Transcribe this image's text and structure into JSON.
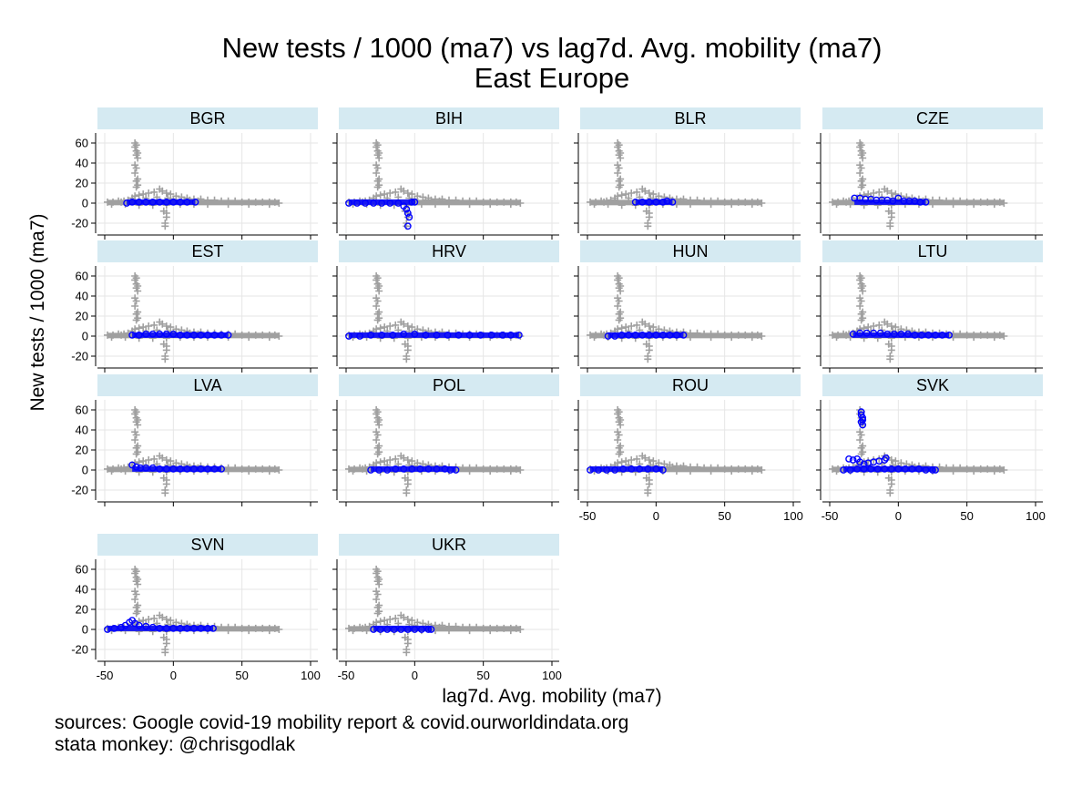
{
  "chart_data": {
    "type": "scatter",
    "title": "New tests / 1000 (ma7) vs lag7d. Avg. mobility (ma7)",
    "subtitle": "East Europe",
    "xlabel": "lag7d. Avg. mobility (ma7)",
    "ylabel": "New tests / 1000 (ma7)",
    "xlim": [
      -50,
      100
    ],
    "ylim": [
      -30,
      70
    ],
    "xticks": [
      -50,
      0,
      50,
      100
    ],
    "yticks": [
      -20,
      0,
      20,
      40,
      60
    ],
    "grid": true,
    "panel_strip_color": "#d5eaf2",
    "background_color": "#a0a0a0",
    "highlight_color": "#0000ff",
    "notes": [
      "sources: Google covid-19 mobility report & covid.ourworldindata.org",
      "stata monkey: @chrisgodlak"
    ],
    "background_points": [
      [
        -28,
        60
      ],
      [
        -28,
        56
      ],
      [
        -27,
        58
      ],
      [
        -27,
        52
      ],
      [
        -27,
        48
      ],
      [
        -26,
        45
      ],
      [
        -26,
        50
      ],
      [
        -28,
        38
      ],
      [
        -27,
        35
      ],
      [
        -28,
        30
      ],
      [
        -27,
        22
      ],
      [
        -26,
        24
      ],
      [
        -27,
        16
      ],
      [
        -26,
        18
      ],
      [
        -5,
        -14
      ],
      [
        -6,
        -20
      ],
      [
        -6,
        -23
      ],
      [
        -5,
        -10
      ],
      [
        -7,
        -8
      ],
      [
        -48,
        1
      ],
      [
        -44,
        1
      ],
      [
        -40,
        2
      ],
      [
        -36,
        2
      ],
      [
        -33,
        3
      ],
      [
        -30,
        5
      ],
      [
        -28,
        7
      ],
      [
        -25,
        8
      ],
      [
        -22,
        9
      ],
      [
        -18,
        10
      ],
      [
        -14,
        11
      ],
      [
        -10,
        14
      ],
      [
        -8,
        12
      ],
      [
        -5,
        10
      ],
      [
        -2,
        9
      ],
      [
        2,
        7
      ],
      [
        6,
        6
      ],
      [
        10,
        5
      ],
      [
        15,
        4
      ],
      [
        20,
        4
      ],
      [
        25,
        3
      ],
      [
        30,
        3
      ],
      [
        35,
        2
      ],
      [
        40,
        2
      ],
      [
        45,
        2
      ],
      [
        50,
        1
      ],
      [
        55,
        1
      ],
      [
        60,
        1
      ],
      [
        65,
        1
      ],
      [
        70,
        1
      ],
      [
        74,
        1
      ],
      [
        77,
        0
      ],
      [
        -45,
        -1
      ],
      [
        -35,
        -1
      ],
      [
        -25,
        -2
      ],
      [
        -15,
        -2
      ],
      [
        -5,
        -2
      ],
      [
        5,
        -1
      ],
      [
        15,
        -1
      ],
      [
        25,
        -1
      ],
      [
        40,
        -1
      ],
      [
        55,
        -1
      ],
      [
        70,
        -1
      ],
      [
        -20,
        5
      ],
      [
        -12,
        6
      ],
      [
        -4,
        5
      ],
      [
        8,
        3
      ],
      [
        18,
        2
      ],
      [
        -30,
        3
      ],
      [
        -38,
        1
      ],
      [
        0,
        4
      ],
      [
        12,
        3
      ]
    ],
    "panels": [
      {
        "name": "BGR",
        "x_range": [
          -34,
          16
        ],
        "points": [
          [
            -34,
            0
          ],
          [
            -30,
            1
          ],
          [
            -25,
            1
          ],
          [
            -20,
            1
          ],
          [
            -15,
            1
          ],
          [
            -10,
            1
          ],
          [
            -5,
            1
          ],
          [
            0,
            1
          ],
          [
            5,
            1
          ],
          [
            10,
            1
          ],
          [
            16,
            1
          ]
        ]
      },
      {
        "name": "BIH",
        "x_range": [
          -48,
          0
        ],
        "points": [
          [
            -48,
            0
          ],
          [
            -42,
            0
          ],
          [
            -36,
            0
          ],
          [
            -30,
            0
          ],
          [
            -24,
            0
          ],
          [
            -18,
            0
          ],
          [
            -12,
            0
          ],
          [
            -8,
            -3
          ],
          [
            -6,
            -6
          ],
          [
            -5,
            -10
          ],
          [
            -4,
            -14
          ],
          [
            -5,
            -23
          ],
          [
            -2,
            1
          ],
          [
            0,
            1
          ]
        ]
      },
      {
        "name": "BLR",
        "x_range": [
          -15,
          12
        ],
        "points": [
          [
            -15,
            1
          ],
          [
            -10,
            1
          ],
          [
            -5,
            1
          ],
          [
            0,
            1
          ],
          [
            5,
            1
          ],
          [
            8,
            2
          ],
          [
            12,
            1
          ]
        ]
      },
      {
        "name": "CZE",
        "x_range": [
          -32,
          20
        ],
        "points": [
          [
            -32,
            5
          ],
          [
            -28,
            5
          ],
          [
            -24,
            4
          ],
          [
            -20,
            4
          ],
          [
            -16,
            3
          ],
          [
            -12,
            3
          ],
          [
            -8,
            3
          ],
          [
            -4,
            2
          ],
          [
            0,
            5
          ],
          [
            4,
            2
          ],
          [
            8,
            2
          ],
          [
            12,
            2
          ],
          [
            16,
            1
          ],
          [
            20,
            1
          ]
        ]
      },
      {
        "name": "EST",
        "x_range": [
          -30,
          40
        ],
        "points": [
          [
            -30,
            1
          ],
          [
            -25,
            1
          ],
          [
            -20,
            2
          ],
          [
            -15,
            2
          ],
          [
            -10,
            2
          ],
          [
            -5,
            2
          ],
          [
            0,
            2
          ],
          [
            5,
            1
          ],
          [
            10,
            1
          ],
          [
            15,
            1
          ],
          [
            20,
            1
          ],
          [
            25,
            1
          ],
          [
            30,
            1
          ],
          [
            35,
            1
          ],
          [
            40,
            1
          ]
        ]
      },
      {
        "name": "HRV",
        "x_range": [
          -48,
          76
        ],
        "points": [
          [
            -48,
            0
          ],
          [
            -40,
            0
          ],
          [
            -32,
            1
          ],
          [
            -24,
            1
          ],
          [
            -16,
            1
          ],
          [
            -8,
            2
          ],
          [
            0,
            2
          ],
          [
            8,
            1
          ],
          [
            16,
            1
          ],
          [
            24,
            1
          ],
          [
            32,
            1
          ],
          [
            40,
            1
          ],
          [
            48,
            1
          ],
          [
            56,
            1
          ],
          [
            64,
            1
          ],
          [
            70,
            1
          ],
          [
            76,
            1
          ]
        ]
      },
      {
        "name": "HUN",
        "x_range": [
          -35,
          20
        ],
        "points": [
          [
            -35,
            0
          ],
          [
            -30,
            0
          ],
          [
            -25,
            1
          ],
          [
            -20,
            1
          ],
          [
            -15,
            1
          ],
          [
            -10,
            1
          ],
          [
            -5,
            1
          ],
          [
            0,
            1
          ],
          [
            5,
            1
          ],
          [
            10,
            1
          ],
          [
            15,
            1
          ],
          [
            20,
            1
          ]
        ]
      },
      {
        "name": "LTU",
        "x_range": [
          -33,
          37
        ],
        "points": [
          [
            -33,
            2
          ],
          [
            -28,
            3
          ],
          [
            -23,
            3
          ],
          [
            -18,
            3
          ],
          [
            -13,
            3
          ],
          [
            -8,
            2
          ],
          [
            -3,
            2
          ],
          [
            2,
            2
          ],
          [
            7,
            2
          ],
          [
            12,
            1
          ],
          [
            17,
            1
          ],
          [
            22,
            1
          ],
          [
            27,
            1
          ],
          [
            32,
            1
          ],
          [
            37,
            1
          ]
        ]
      },
      {
        "name": "LVA",
        "x_range": [
          -30,
          35
        ],
        "points": [
          [
            -30,
            5
          ],
          [
            -27,
            3
          ],
          [
            -24,
            2
          ],
          [
            -20,
            2
          ],
          [
            -15,
            2
          ],
          [
            -10,
            1
          ],
          [
            -5,
            1
          ],
          [
            0,
            1
          ],
          [
            5,
            1
          ],
          [
            10,
            1
          ],
          [
            15,
            1
          ],
          [
            20,
            1
          ],
          [
            25,
            1
          ],
          [
            30,
            1
          ],
          [
            35,
            1
          ]
        ]
      },
      {
        "name": "POL",
        "x_range": [
          -32,
          30
        ],
        "points": [
          [
            -32,
            0
          ],
          [
            -26,
            0
          ],
          [
            -20,
            0
          ],
          [
            -14,
            1
          ],
          [
            -8,
            1
          ],
          [
            -2,
            1
          ],
          [
            4,
            1
          ],
          [
            10,
            1
          ],
          [
            16,
            1
          ],
          [
            22,
            1
          ],
          [
            26,
            0
          ],
          [
            30,
            0
          ]
        ]
      },
      {
        "name": "ROU",
        "x_range": [
          -48,
          5
        ],
        "points": [
          [
            -48,
            0
          ],
          [
            -42,
            0
          ],
          [
            -36,
            0
          ],
          [
            -30,
            0
          ],
          [
            -24,
            1
          ],
          [
            -18,
            1
          ],
          [
            -12,
            1
          ],
          [
            -6,
            1
          ],
          [
            0,
            1
          ],
          [
            5,
            0
          ]
        ]
      },
      {
        "name": "SVK",
        "x_range": [
          -40,
          27
        ],
        "points": [
          [
            -27,
            58
          ],
          [
            -27,
            55
          ],
          [
            -26,
            52
          ],
          [
            -27,
            48
          ],
          [
            -26,
            45
          ],
          [
            -26,
            50
          ],
          [
            -36,
            11
          ],
          [
            -33,
            10
          ],
          [
            -30,
            11
          ],
          [
            -28,
            8
          ],
          [
            -25,
            6
          ],
          [
            -22,
            7
          ],
          [
            -18,
            8
          ],
          [
            -14,
            9
          ],
          [
            -10,
            10
          ],
          [
            -9,
            12
          ],
          [
            -40,
            0
          ],
          [
            -35,
            0
          ],
          [
            -30,
            1
          ],
          [
            -25,
            1
          ],
          [
            -20,
            1
          ],
          [
            -15,
            1
          ],
          [
            -10,
            1
          ],
          [
            -5,
            1
          ],
          [
            0,
            1
          ],
          [
            5,
            1
          ],
          [
            10,
            1
          ],
          [
            15,
            1
          ],
          [
            20,
            0
          ],
          [
            25,
            0
          ],
          [
            27,
            0
          ]
        ]
      },
      {
        "name": "SVN",
        "x_range": [
          -48,
          29
        ],
        "points": [
          [
            -48,
            0
          ],
          [
            -43,
            1
          ],
          [
            -38,
            2
          ],
          [
            -35,
            4
          ],
          [
            -32,
            7
          ],
          [
            -30,
            9
          ],
          [
            -28,
            6
          ],
          [
            -25,
            4
          ],
          [
            -20,
            3
          ],
          [
            -15,
            2
          ],
          [
            -10,
            1
          ],
          [
            -5,
            1
          ],
          [
            0,
            1
          ],
          [
            5,
            1
          ],
          [
            10,
            1
          ],
          [
            15,
            1
          ],
          [
            20,
            1
          ],
          [
            25,
            1
          ],
          [
            29,
            1
          ]
        ]
      },
      {
        "name": "UKR",
        "x_range": [
          -30,
          12
        ],
        "points": [
          [
            -30,
            0
          ],
          [
            -25,
            0
          ],
          [
            -20,
            0
          ],
          [
            -15,
            0
          ],
          [
            -10,
            0
          ],
          [
            -5,
            0
          ],
          [
            0,
            0
          ],
          [
            5,
            0
          ],
          [
            10,
            0
          ],
          [
            12,
            0
          ]
        ]
      }
    ]
  }
}
